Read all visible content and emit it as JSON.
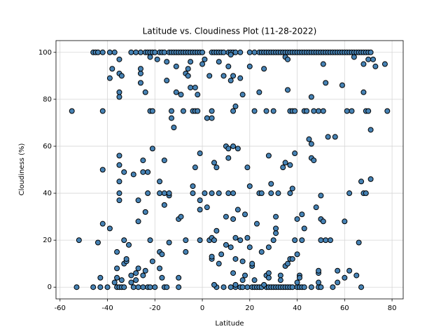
{
  "chart_data": {
    "type": "scatter",
    "title": "Latitude vs. Cloudiness Plot (11-28-2022)",
    "x_label": "Latitude",
    "y_label": "Cloudiness (%)",
    "color": "#4682b4",
    "edge_color": "#000000",
    "grid": true,
    "xlim": [
      -61.7,
      84.7
    ],
    "ylim": [
      -5,
      105
    ],
    "xticks": [
      -60,
      -40,
      -20,
      0,
      20,
      40,
      60,
      80
    ],
    "yticks": [
      0,
      20,
      40,
      60,
      80,
      100
    ],
    "x": [
      -46,
      -45,
      -44,
      -42,
      -39,
      -37,
      -30,
      -28,
      -26,
      -24,
      -23,
      -22,
      -21,
      -20,
      -18,
      -17,
      -16,
      -14,
      -13,
      -12,
      -11,
      -10,
      -9,
      -8,
      -7,
      -6,
      -5,
      -4,
      -3,
      -2,
      -1,
      0,
      4,
      5,
      6,
      7,
      8,
      9,
      11,
      12,
      13,
      14,
      16,
      20,
      22,
      24,
      25,
      26,
      27,
      28,
      29,
      30,
      31,
      32,
      33,
      34,
      35,
      36,
      37,
      38,
      39,
      40,
      41,
      42,
      43,
      44,
      45,
      46,
      47,
      48,
      49,
      50,
      51,
      52,
      53,
      54,
      55,
      56,
      57,
      58,
      59,
      60,
      61,
      62,
      63,
      64,
      65,
      66,
      67,
      68,
      69,
      70,
      71,
      -53,
      -46,
      -43,
      -40,
      -36,
      -35,
      -34,
      -33,
      -29,
      -27,
      -25,
      -23,
      -22,
      -20,
      -16,
      -15,
      -10,
      6,
      9,
      12,
      14,
      16,
      17,
      19,
      21,
      22,
      23,
      24,
      25,
      27,
      28,
      29,
      30,
      31,
      32,
      33,
      34,
      35,
      36,
      37,
      38,
      40,
      41,
      42,
      43,
      46,
      49,
      50,
      55,
      67,
      -55,
      -52,
      -44,
      -43,
      -42,
      -42,
      -42,
      -39,
      -39,
      -38,
      -37,
      -36,
      -36,
      -36,
      -35,
      -35,
      -35,
      -35,
      -35,
      -35,
      -35,
      -35,
      -35,
      -34,
      -34,
      -33,
      -33,
      -33,
      -32,
      -32,
      -31,
      -30,
      -30,
      -29,
      -28,
      -28,
      -27,
      -27,
      -27,
      -26,
      -26,
      -26,
      -25,
      -25,
      -25,
      -24,
      -24,
      -24,
      -23,
      -23,
      -22,
      -22,
      -22,
      -21,
      -21,
      -21,
      -19,
      -18,
      -18,
      -18,
      -18,
      -17,
      -17,
      -16,
      -16,
      -16,
      -15,
      -15,
      -14,
      -14,
      -14,
      -13,
      -13,
      -12,
      -11,
      -11,
      -10,
      -10,
      -9,
      -9,
      -8,
      -7,
      -7,
      -7,
      -6,
      -6,
      -5,
      -5,
      -4,
      -4,
      -4,
      -3,
      -3,
      -3,
      -2,
      -2,
      -1,
      -1,
      -1,
      -1,
      0,
      1,
      1,
      2,
      2,
      3,
      3,
      4,
      4,
      4,
      4,
      4,
      4,
      5,
      5,
      5,
      6,
      6,
      7,
      7,
      7,
      8,
      9,
      10,
      10,
      10,
      11,
      11,
      11,
      11,
      12,
      12,
      12,
      13,
      13,
      13,
      13,
      13,
      13,
      14,
      14,
      14,
      14,
      15,
      15,
      16,
      16,
      17,
      17,
      17,
      18,
      18,
      19,
      19,
      20,
      20,
      20,
      21,
      21,
      22,
      22,
      23,
      24,
      24,
      25,
      25,
      26,
      26,
      27,
      27,
      28,
      28,
      28,
      28,
      29,
      29,
      30,
      30,
      31,
      31,
      31,
      32,
      33,
      33,
      34,
      35,
      35,
      35,
      36,
      36,
      36,
      37,
      37,
      37,
      37,
      38,
      38,
      38,
      39,
      39,
      39,
      40,
      40,
      40,
      41,
      41,
      42,
      42,
      43,
      43,
      44,
      45,
      46,
      46,
      46,
      47,
      47,
      48,
      49,
      49,
      49,
      49,
      50,
      50,
      50,
      51,
      51,
      51,
      52,
      52,
      53,
      54,
      56,
      57,
      57,
      59,
      60,
      60,
      61,
      62,
      62,
      63,
      64,
      65,
      66,
      67,
      68,
      68,
      68,
      69,
      69,
      70,
      70,
      71,
      71,
      72,
      73,
      77,
      78
    ],
    "values": [
      100,
      100,
      100,
      100,
      100,
      100,
      100,
      100,
      100,
      100,
      100,
      100,
      100,
      100,
      100,
      100,
      100,
      100,
      100,
      100,
      100,
      100,
      100,
      100,
      100,
      100,
      100,
      100,
      100,
      100,
      100,
      100,
      100,
      100,
      100,
      100,
      100,
      100,
      100,
      100,
      100,
      100,
      100,
      100,
      100,
      100,
      100,
      100,
      100,
      100,
      100,
      100,
      100,
      100,
      100,
      100,
      100,
      100,
      100,
      100,
      100,
      100,
      100,
      100,
      100,
      100,
      100,
      100,
      100,
      100,
      100,
      100,
      100,
      100,
      100,
      100,
      100,
      100,
      100,
      100,
      100,
      100,
      100,
      100,
      100,
      100,
      100,
      100,
      100,
      100,
      100,
      100,
      100,
      0,
      0,
      0,
      0,
      0,
      0,
      0,
      0,
      0,
      0,
      0,
      0,
      0,
      0,
      0,
      0,
      0,
      0,
      0,
      0,
      0,
      0,
      0,
      0,
      0,
      0,
      0,
      0,
      0,
      0,
      0,
      0,
      0,
      0,
      0,
      0,
      0,
      0,
      0,
      0,
      0,
      0,
      0,
      0,
      0,
      0,
      0,
      0,
      0,
      0,
      75,
      20,
      19,
      4,
      27,
      75,
      50,
      25,
      89,
      93,
      2,
      15,
      8,
      4,
      37,
      40,
      45,
      52,
      56,
      81,
      83,
      91,
      97,
      3,
      90,
      20,
      49,
      10,
      11,
      12,
      18,
      5,
      2,
      48,
      6,
      3,
      8,
      37,
      28,
      87,
      91,
      93,
      5,
      49,
      54,
      32,
      7,
      83,
      40,
      49,
      20,
      75,
      98,
      59,
      75,
      11,
      97,
      15,
      40,
      45,
      8,
      14,
      4,
      35,
      40,
      54,
      96,
      88,
      39,
      40,
      19,
      72,
      75,
      68,
      94,
      83,
      29,
      4,
      30,
      82,
      75,
      15,
      20,
      91,
      90,
      93,
      85,
      96,
      40,
      43,
      75,
      51,
      85,
      75,
      75,
      82,
      57,
      37,
      33,
      20,
      95,
      97,
      40,
      72,
      34,
      90,
      20,
      12,
      13,
      21,
      40,
      72,
      75,
      1,
      53,
      20,
      51,
      24,
      10,
      40,
      96,
      14,
      90,
      30,
      60,
      18,
      55,
      94,
      59,
      40,
      17,
      88,
      99,
      60,
      6,
      29,
      40,
      75,
      90,
      77,
      21,
      12,
      1,
      33,
      59,
      89,
      20,
      11,
      82,
      3,
      5,
      31,
      21,
      51,
      43,
      94,
      17,
      9,
      10,
      3,
      75,
      27,
      83,
      40,
      40,
      15,
      93,
      1,
      5,
      75,
      6,
      56,
      17,
      4,
      44,
      40,
      75,
      20,
      25,
      23,
      30,
      40,
      5,
      3,
      51,
      53,
      9,
      98,
      10,
      84,
      97,
      12,
      52,
      40,
      75,
      42,
      75,
      12,
      57,
      20,
      75,
      29,
      14,
      2,
      5,
      4,
      20,
      31,
      25,
      75,
      75,
      63,
      61,
      81,
      55,
      54,
      75,
      34,
      75,
      6,
      7,
      2,
      39,
      29,
      20,
      28,
      95,
      75,
      87,
      20,
      64,
      20,
      64,
      7,
      2,
      86,
      28,
      4,
      75,
      40,
      7,
      75,
      98,
      5,
      19,
      45,
      83,
      95,
      40,
      75,
      40,
      97,
      75,
      67,
      46,
      97,
      94,
      95,
      75
    ]
  }
}
